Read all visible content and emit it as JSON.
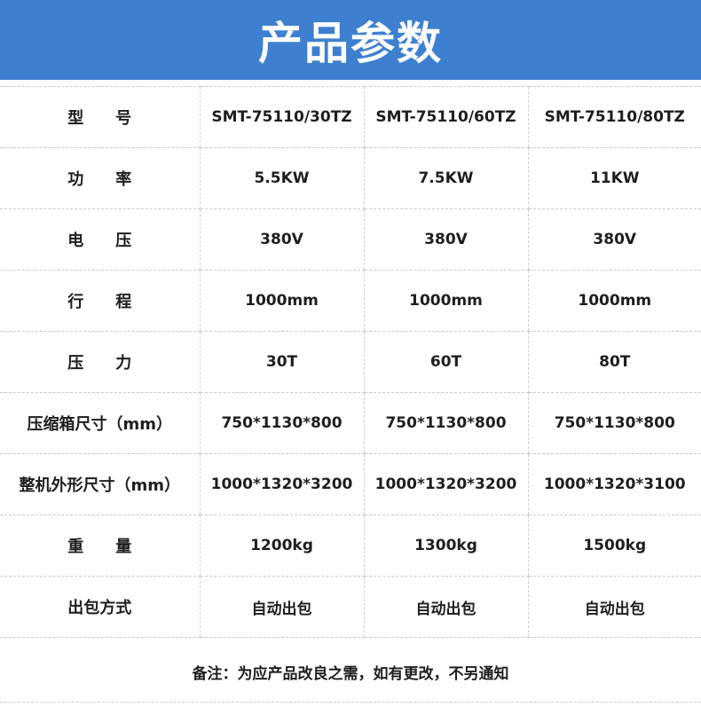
{
  "header": {
    "title": "产品参数",
    "color": "#3e80cf"
  },
  "table": {
    "rows": [
      {
        "label": "型　　号",
        "values": [
          "SMT-75110/30TZ",
          "SMT-75110/60TZ",
          "SMT-75110/80TZ"
        ]
      },
      {
        "label": "功　　率",
        "values": [
          "5.5KW",
          "7.5KW",
          "11KW"
        ]
      },
      {
        "label": "电　　压",
        "values": [
          "380V",
          "380V",
          "380V"
        ]
      },
      {
        "label": "行　　程",
        "values": [
          "1000mm",
          "1000mm",
          "1000mm"
        ]
      },
      {
        "label": "压　　力",
        "values": [
          "30T",
          "60T",
          "80T"
        ]
      },
      {
        "label": "压缩箱尺寸（mm）",
        "values": [
          "750*1130*800",
          "750*1130*800",
          "750*1130*800"
        ]
      },
      {
        "label": "整机外形尺寸（mm）",
        "values": [
          "1000*1320*3200",
          "1000*1320*3200",
          "1000*1320*3100"
        ]
      },
      {
        "label": "重　　量",
        "values": [
          "1200kg",
          "1300kg",
          "1500kg"
        ]
      },
      {
        "label": "出包方式",
        "values": [
          "自动出包",
          "自动出包",
          "自动出包"
        ]
      }
    ]
  },
  "note": "备注：为应产品改良之需，如有更改，不另通知"
}
